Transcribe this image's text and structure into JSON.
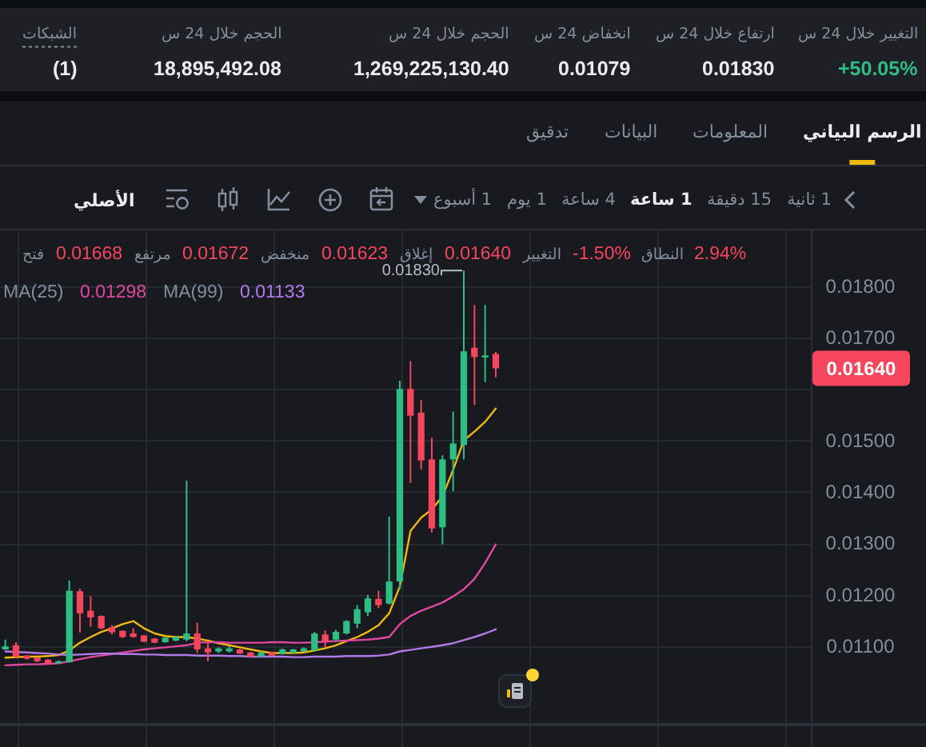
{
  "chart_data": {
    "type": "candlestick",
    "categories": [
      null,
      null,
      null,
      null,
      null,
      null,
      null,
      null,
      null,
      null,
      null,
      null,
      null,
      null,
      null,
      null,
      null,
      null,
      null,
      null,
      null,
      null,
      null,
      null,
      null,
      null,
      null,
      null,
      null,
      null,
      null,
      null,
      null,
      null,
      null,
      null,
      null,
      null,
      null,
      null,
      null,
      null,
      null,
      null,
      null,
      null,
      null
    ],
    "ohlc": [
      [
        0.01094,
        0.01113,
        0.01093,
        0.011
      ],
      [
        0.01102,
        0.01108,
        0.01078,
        0.0108
      ],
      [
        0.01082,
        0.01083,
        0.01074,
        0.01076
      ],
      [
        0.01078,
        0.01079,
        0.01069,
        0.01071
      ],
      [
        0.01074,
        0.01075,
        0.01066,
        0.01067
      ],
      [
        0.01067,
        0.01073,
        0.01066,
        0.01071
      ],
      [
        0.01069,
        0.01228,
        0.01068,
        0.01208
      ],
      [
        0.01207,
        0.01212,
        0.01127,
        0.01164
      ],
      [
        0.01169,
        0.01197,
        0.01138,
        0.01156
      ],
      [
        0.01159,
        0.0116,
        0.01133,
        0.01135
      ],
      [
        0.01137,
        0.01141,
        0.01123,
        0.01127
      ],
      [
        0.0113,
        0.01131,
        0.01116,
        0.01118
      ],
      [
        0.01125,
        0.01135,
        0.01117,
        0.01118
      ],
      [
        0.01121,
        0.01122,
        0.01108,
        0.01109
      ],
      [
        0.01115,
        0.01116,
        0.01106,
        0.01107
      ],
      [
        0.01108,
        0.01118,
        0.01107,
        0.01117
      ],
      [
        0.01111,
        0.0112,
        0.0111,
        0.01118
      ],
      [
        0.01113,
        0.01422,
        0.0111,
        0.01125
      ],
      [
        0.01125,
        0.01146,
        0.01087,
        0.01094
      ],
      [
        0.01096,
        0.0111,
        0.01071,
        0.01088
      ],
      [
        0.0109,
        0.01098,
        0.01087,
        0.01096
      ],
      [
        0.0109,
        0.011,
        0.01088,
        0.01096
      ],
      [
        0.01094,
        0.01095,
        0.01085,
        0.01086
      ],
      [
        0.01088,
        0.01089,
        0.01079,
        0.0108
      ],
      [
        0.0108,
        0.01089,
        0.01079,
        0.01088
      ],
      [
        0.01088,
        0.01089,
        0.01081,
        0.01082
      ],
      [
        0.01085,
        0.01096,
        0.01084,
        0.01094
      ],
      [
        0.01087,
        0.01095,
        0.01086,
        0.01094
      ],
      [
        0.0109,
        0.01098,
        0.01089,
        0.01096
      ],
      [
        0.01092,
        0.01128,
        0.0109,
        0.01125
      ],
      [
        0.01123,
        0.01131,
        0.01097,
        0.0111
      ],
      [
        0.01113,
        0.01132,
        0.0111,
        0.01128
      ],
      [
        0.01125,
        0.01151,
        0.01123,
        0.01149
      ],
      [
        0.01144,
        0.0118,
        0.01135,
        0.01172
      ],
      [
        0.01166,
        0.012,
        0.01159,
        0.01193
      ],
      [
        0.01192,
        0.01208,
        0.01174,
        0.0118
      ],
      [
        0.01183,
        0.01352,
        0.01181,
        0.01226
      ],
      [
        0.01226,
        0.01616,
        0.01211,
        0.016
      ],
      [
        0.016,
        0.01654,
        0.01417,
        0.01548
      ],
      [
        0.01554,
        0.01579,
        0.01443,
        0.01461
      ],
      [
        0.01463,
        0.01505,
        0.01321,
        0.01329
      ],
      [
        0.01331,
        0.01471,
        0.01298,
        0.01463
      ],
      [
        0.01463,
        0.01556,
        0.01401,
        0.01494
      ],
      [
        0.01491,
        0.0183,
        0.01463,
        0.01673
      ],
      [
        0.0168,
        0.01763,
        0.01569,
        0.01662
      ],
      [
        0.01661,
        0.01763,
        0.01613,
        0.01665
      ],
      [
        0.01668,
        0.01672,
        0.01623,
        0.0164
      ]
    ],
    "colors": [
      "#2ebd85",
      "#f6465d",
      "#f6465d",
      "#f6465d",
      "#f6465d",
      "#2ebd85",
      "#2ebd85",
      "#f6465d",
      "#f6465d",
      "#f6465d",
      "#f6465d",
      "#f6465d",
      "#f6465d",
      "#f6465d",
      "#f6465d",
      "#2ebd85",
      "#2ebd85",
      "#2ebd85",
      "#f6465d",
      "#f6465d",
      "#2ebd85",
      "#2ebd85",
      "#f6465d",
      "#f6465d",
      "#2ebd85",
      "#f6465d",
      "#2ebd85",
      "#2ebd85",
      "#2ebd85",
      "#2ebd85",
      "#f6465d",
      "#2ebd85",
      "#2ebd85",
      "#2ebd85",
      "#2ebd85",
      "#f6465d",
      "#2ebd85",
      "#2ebd85",
      "#f6465d",
      "#f6465d",
      "#f6465d",
      "#2ebd85",
      "#2ebd85",
      "#2ebd85",
      "#f6465d",
      "#2ebd85",
      "#f6465d"
    ],
    "series": [
      {
        "type": "line",
        "color": "#f0b90b",
        "values": [
          0.01078,
          0.01079,
          0.0108,
          0.0108,
          0.01081,
          0.01083,
          0.01092,
          0.01107,
          0.01118,
          0.01128,
          0.01135,
          0.01143,
          0.01149,
          0.01135,
          0.01125,
          0.0112,
          0.01118,
          0.01118,
          0.01115,
          0.01111,
          0.01106,
          0.01102,
          0.01098,
          0.01094,
          0.0109,
          0.01087,
          0.01087,
          0.01087,
          0.01088,
          0.01092,
          0.01096,
          0.01102,
          0.0111,
          0.01118,
          0.01128,
          0.01141,
          0.01164,
          0.01216,
          0.01324,
          0.0135,
          0.01366,
          0.01391,
          0.01443,
          0.015,
          0.01517,
          0.01536,
          0.01562
        ]
      },
      {
        "type": "line",
        "color": "#e0479e",
        "values": [
          0.01063,
          0.01064,
          0.01065,
          0.01065,
          0.01066,
          0.01067,
          0.01071,
          0.01075,
          0.01079,
          0.01082,
          0.01085,
          0.01088,
          0.01091,
          0.01094,
          0.01096,
          0.01098,
          0.011,
          0.01102,
          0.01107,
          0.01108,
          0.01108,
          0.01107,
          0.01107,
          0.01107,
          0.01107,
          0.01108,
          0.01108,
          0.01107,
          0.01107,
          0.01108,
          0.01109,
          0.0111,
          0.01111,
          0.01112,
          0.01113,
          0.01115,
          0.01118,
          0.01143,
          0.01159,
          0.01169,
          0.01177,
          0.01185,
          0.01197,
          0.01211,
          0.01231,
          0.01262,
          0.01298
        ]
      },
      {
        "type": "line",
        "color": "#b17ae6",
        "values": [
          0.0109,
          0.01089,
          0.01088,
          0.01087,
          0.01086,
          0.01084,
          0.01083,
          0.01084,
          0.01085,
          0.01086,
          0.01086,
          0.01085,
          0.01085,
          0.01084,
          0.01084,
          0.01083,
          0.01083,
          0.01083,
          0.01082,
          0.01082,
          0.01082,
          0.01081,
          0.01081,
          0.0108,
          0.0108,
          0.0108,
          0.0108,
          0.01079,
          0.01079,
          0.0108,
          0.0108,
          0.0108,
          0.01081,
          0.01081,
          0.01081,
          0.01082,
          0.01084,
          0.0109,
          0.01093,
          0.01096,
          0.01099,
          0.01102,
          0.01106,
          0.01112,
          0.01118,
          0.01125,
          0.01133
        ]
      }
    ],
    "ylim": [
      0.00951,
      0.01908
    ],
    "yticks": [
      {
        "value": 0.011,
        "label": "0.01100"
      },
      {
        "value": 0.012,
        "label": "0.01200"
      },
      {
        "value": 0.013,
        "label": "0.01300"
      },
      {
        "value": 0.014,
        "label": "0.01400"
      },
      {
        "value": 0.015,
        "label": "0.01500"
      },
      {
        "value": 0.016,
        "label": null
      },
      {
        "value": 0.017,
        "label": "0.01700"
      },
      {
        "value": 0.018,
        "label": "0.01800"
      }
    ],
    "tick_labels": "y",
    "grid": true,
    "annotations": [
      "التغيير خلال 24 س",
      "+50.05%",
      "ارتفاع خلال 24 س",
      "0.01830",
      "انخفاض 24 س",
      "0.01079",
      "الحجم خلال 24 س",
      "1,269,225,130.40",
      "الحجم خلال 24 س",
      "18,895,492.08",
      "الشبكات",
      "(1)",
      "الرسم البياني",
      "المعلومات",
      "البيانات",
      "تدقيق",
      "1 ثانية",
      "15 دقيقة",
      "1 ساعة",
      "4 ساعة",
      "1 يوم",
      "1 أسبوع",
      "الأصلي",
      "فتح",
      "0.01668",
      "مرتفع",
      "0.01672",
      "منخفض",
      "0.01623",
      "إغلاق",
      "0.01640",
      "التغيير",
      "-1.50%",
      "النطاق",
      "2.94%",
      "MA(25)",
      "0.01298",
      "MA(99)",
      "0.01133",
      "0.01830",
      "0.01640"
    ]
  }
}
